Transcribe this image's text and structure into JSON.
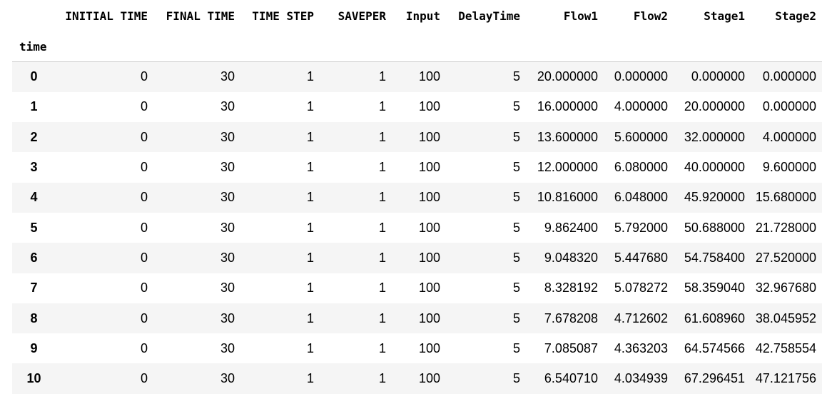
{
  "table": {
    "columns": [
      "INITIAL TIME",
      "FINAL TIME",
      "TIME STEP",
      "SAVEPER",
      "Input",
      "DelayTime",
      "Flow1",
      "Flow2",
      "Stage1",
      "Stage2"
    ],
    "index_name": "time",
    "rows": [
      {
        "index": "0",
        "cells": [
          "0",
          "30",
          "1",
          "1",
          "100",
          "5",
          "20.000000",
          "0.000000",
          "0.000000",
          "0.000000"
        ]
      },
      {
        "index": "1",
        "cells": [
          "0",
          "30",
          "1",
          "1",
          "100",
          "5",
          "16.000000",
          "4.000000",
          "20.000000",
          "0.000000"
        ]
      },
      {
        "index": "2",
        "cells": [
          "0",
          "30",
          "1",
          "1",
          "100",
          "5",
          "13.600000",
          "5.600000",
          "32.000000",
          "4.000000"
        ]
      },
      {
        "index": "3",
        "cells": [
          "0",
          "30",
          "1",
          "1",
          "100",
          "5",
          "12.000000",
          "6.080000",
          "40.000000",
          "9.600000"
        ]
      },
      {
        "index": "4",
        "cells": [
          "0",
          "30",
          "1",
          "1",
          "100",
          "5",
          "10.816000",
          "6.048000",
          "45.920000",
          "15.680000"
        ]
      },
      {
        "index": "5",
        "cells": [
          "0",
          "30",
          "1",
          "1",
          "100",
          "5",
          "9.862400",
          "5.792000",
          "50.688000",
          "21.728000"
        ]
      },
      {
        "index": "6",
        "cells": [
          "0",
          "30",
          "1",
          "1",
          "100",
          "5",
          "9.048320",
          "5.447680",
          "54.758400",
          "27.520000"
        ]
      },
      {
        "index": "7",
        "cells": [
          "0",
          "30",
          "1",
          "1",
          "100",
          "5",
          "8.328192",
          "5.078272",
          "58.359040",
          "32.967680"
        ]
      },
      {
        "index": "8",
        "cells": [
          "0",
          "30",
          "1",
          "1",
          "100",
          "5",
          "7.678208",
          "4.712602",
          "61.608960",
          "38.045952"
        ]
      },
      {
        "index": "9",
        "cells": [
          "0",
          "30",
          "1",
          "1",
          "100",
          "5",
          "7.085087",
          "4.363203",
          "64.574566",
          "42.758554"
        ]
      },
      {
        "index": "10",
        "cells": [
          "0",
          "30",
          "1",
          "1",
          "100",
          "5",
          "6.540710",
          "4.034939",
          "67.296451",
          "47.121756"
        ]
      }
    ]
  },
  "colors": {
    "stripe": "#f5f5f5",
    "header_border": "#cfcfcf"
  }
}
